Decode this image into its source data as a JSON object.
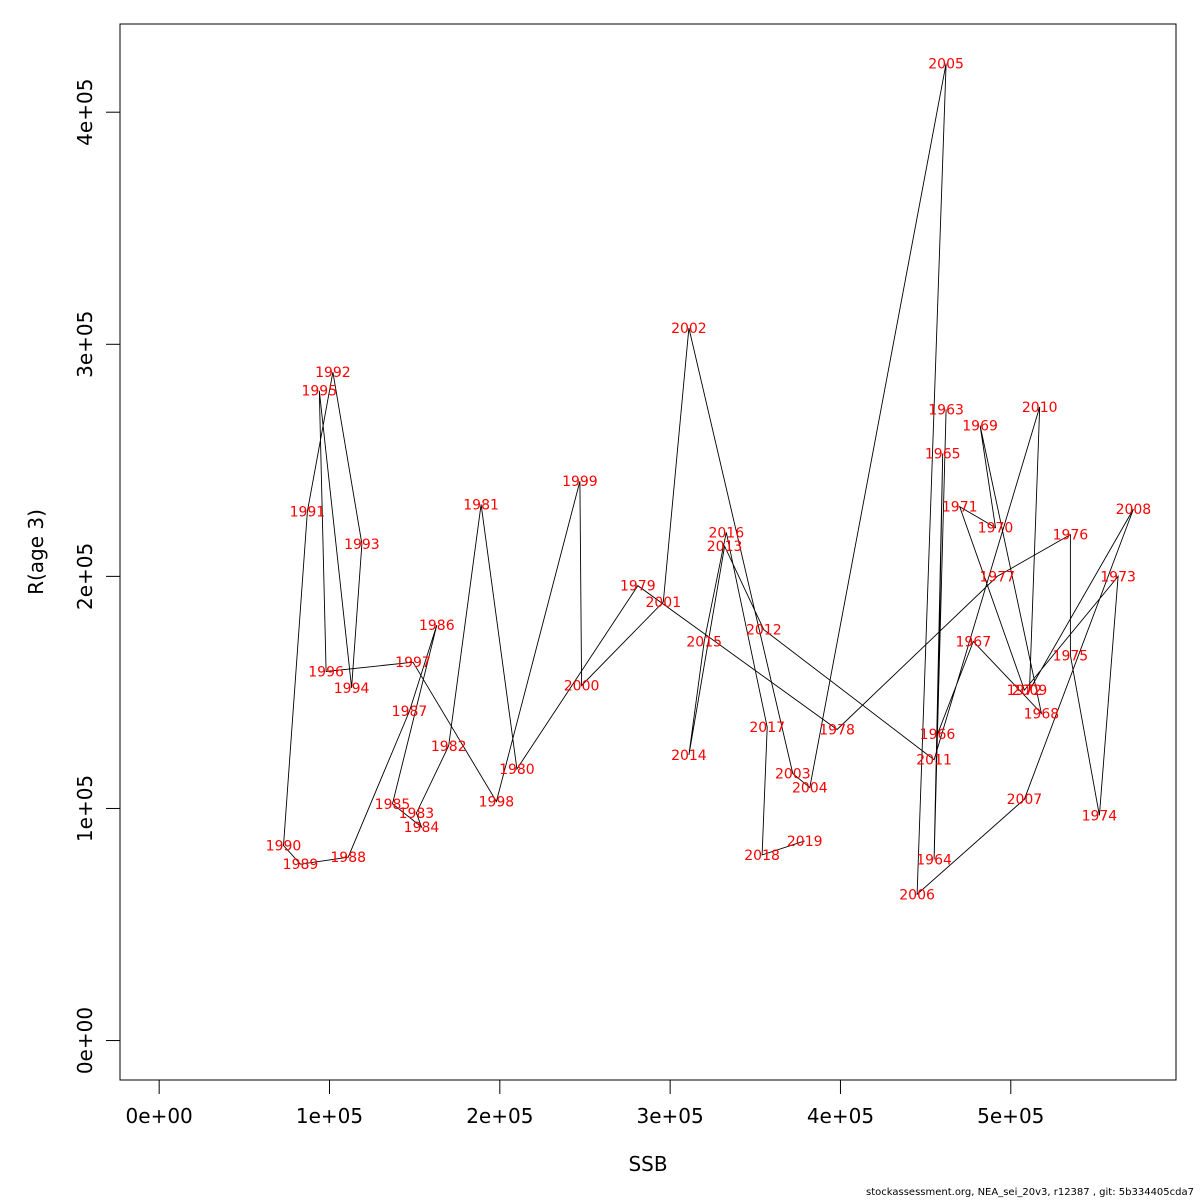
{
  "chart_data": {
    "type": "line",
    "title": "",
    "xlabel": "SSB",
    "ylabel": "R(age 3)",
    "xlim": [
      -23000,
      597000
    ],
    "ylim": [
      -17000,
      438000
    ],
    "xticks": [
      0,
      100000,
      200000,
      300000,
      400000,
      500000
    ],
    "xtick_labels": [
      "0e+00",
      "1e+05",
      "2e+05",
      "3e+05",
      "4e+05",
      "5e+05"
    ],
    "yticks": [
      0,
      100000,
      200000,
      300000,
      400000
    ],
    "ytick_labels": [
      "0e+00",
      "1e+05",
      "2e+05",
      "3e+05",
      "4e+05"
    ],
    "grid": false,
    "line_color": "#000000",
    "label_color": "#ff0000",
    "points": [
      {
        "label": "1963",
        "x": 462000,
        "y": 272000
      },
      {
        "label": "1964",
        "x": 455000,
        "y": 78000
      },
      {
        "label": "1965",
        "x": 460000,
        "y": 253000
      },
      {
        "label": "1966",
        "x": 457000,
        "y": 132000
      },
      {
        "label": "1967",
        "x": 478000,
        "y": 172000
      },
      {
        "label": "1968",
        "x": 518000,
        "y": 141000
      },
      {
        "label": "1969",
        "x": 482000,
        "y": 265000
      },
      {
        "label": "1970",
        "x": 491000,
        "y": 221000
      },
      {
        "label": "1971",
        "x": 470000,
        "y": 230000
      },
      {
        "label": "1972",
        "x": 508000,
        "y": 151000
      },
      {
        "label": "1973",
        "x": 563000,
        "y": 200000
      },
      {
        "label": "1974",
        "x": 552000,
        "y": 97000
      },
      {
        "label": "1975",
        "x": 535000,
        "y": 166000
      },
      {
        "label": "1976",
        "x": 535000,
        "y": 218000
      },
      {
        "label": "1977",
        "x": 492000,
        "y": 200000
      },
      {
        "label": "1978",
        "x": 398000,
        "y": 134000
      },
      {
        "label": "1979",
        "x": 281000,
        "y": 196000
      },
      {
        "label": "1980",
        "x": 210000,
        "y": 117000
      },
      {
        "label": "1981",
        "x": 189000,
        "y": 231000
      },
      {
        "label": "1982",
        "x": 170000,
        "y": 127000
      },
      {
        "label": "1983",
        "x": 151000,
        "y": 98000
      },
      {
        "label": "1984",
        "x": 154000,
        "y": 92000
      },
      {
        "label": "1985",
        "x": 137000,
        "y": 102000
      },
      {
        "label": "1986",
        "x": 163000,
        "y": 179000
      },
      {
        "label": "1987",
        "x": 147000,
        "y": 142000
      },
      {
        "label": "1988",
        "x": 111000,
        "y": 79000
      },
      {
        "label": "1989",
        "x": 83000,
        "y": 76000
      },
      {
        "label": "1990",
        "x": 73000,
        "y": 84000
      },
      {
        "label": "1991",
        "x": 87000,
        "y": 228000
      },
      {
        "label": "1992",
        "x": 102000,
        "y": 288000
      },
      {
        "label": "1993",
        "x": 119000,
        "y": 214000
      },
      {
        "label": "1994",
        "x": 113000,
        "y": 152000
      },
      {
        "label": "1995",
        "x": 94000,
        "y": 280000
      },
      {
        "label": "1996",
        "x": 98000,
        "y": 159000
      },
      {
        "label": "1997",
        "x": 149000,
        "y": 163000
      },
      {
        "label": "1998",
        "x": 198000,
        "y": 103000
      },
      {
        "label": "1999",
        "x": 247000,
        "y": 241000
      },
      {
        "label": "2000",
        "x": 248000,
        "y": 153000
      },
      {
        "label": "2001",
        "x": 296000,
        "y": 189000
      },
      {
        "label": "2002",
        "x": 311000,
        "y": 307000
      },
      {
        "label": "2003",
        "x": 372000,
        "y": 115000
      },
      {
        "label": "2004",
        "x": 382000,
        "y": 109000
      },
      {
        "label": "2005",
        "x": 462000,
        "y": 421000
      },
      {
        "label": "2006",
        "x": 445000,
        "y": 63000
      },
      {
        "label": "2007",
        "x": 508000,
        "y": 104000
      },
      {
        "label": "2008",
        "x": 572000,
        "y": 229000
      },
      {
        "label": "2009",
        "x": 511000,
        "y": 151000
      },
      {
        "label": "2010",
        "x": 517000,
        "y": 273000
      },
      {
        "label": "2011",
        "x": 455000,
        "y": 121000
      },
      {
        "label": "2012",
        "x": 355000,
        "y": 177000
      },
      {
        "label": "2014",
        "x": 311000,
        "y": 123000
      },
      {
        "label": "2013",
        "x": 332000,
        "y": 213000
      },
      {
        "label": "2015",
        "x": 320000,
        "y": 172000
      },
      {
        "label": "2016",
        "x": 333000,
        "y": 219000
      },
      {
        "label": "2017",
        "x": 357000,
        "y": 135000
      },
      {
        "label": "2018",
        "x": 354000,
        "y": 80000
      },
      {
        "label": "2019",
        "x": 379000,
        "y": 86000
      }
    ],
    "line_order": [
      "1963",
      "1964",
      "1965",
      "1966",
      "1967",
      "1968",
      "1969",
      "1970",
      "1971",
      "1972",
      "1973",
      "1974",
      "1975",
      "1976",
      "1977",
      "1978",
      "1979",
      "1980",
      "1981",
      "1982",
      "1983",
      "1984",
      "1985",
      "1986",
      "1987",
      "1988",
      "1989",
      "1990",
      "1991",
      "1992",
      "1993",
      "1994",
      "1995",
      "1996",
      "1997",
      "1998",
      "1999",
      "2000",
      "2001",
      "2002",
      "2003",
      "2004",
      "2005",
      "2006",
      "2007",
      "2008",
      "2009",
      "2010",
      "2011",
      "2012",
      "2013",
      "2014",
      "2015",
      "2016",
      "2017",
      "2018",
      "2019"
    ]
  },
  "footer": "stockassessment.org, NEA_sei_20v3, r12387 , git: 5b334405cda7"
}
